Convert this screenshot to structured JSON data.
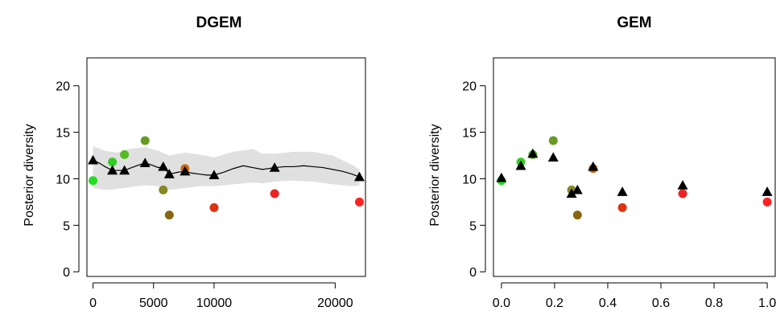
{
  "chart_data": [
    {
      "type": "scatter",
      "title": "DGEM",
      "xlabel": "",
      "ylabel": "Posterior diversity",
      "xlim": [
        -500,
        22500
      ],
      "ylim": [
        -0.5,
        23
      ],
      "xticks": [
        0,
        5000,
        10000,
        20000
      ],
      "yticks": [
        0,
        5,
        10,
        15,
        20
      ],
      "grid": false,
      "legend": "none",
      "points": [
        {
          "x": 0,
          "y": 9.8,
          "color": "#22dd22"
        },
        {
          "x": 1600,
          "y": 11.8,
          "color": "#33cc22"
        },
        {
          "x": 2600,
          "y": 12.6,
          "color": "#55bb22"
        },
        {
          "x": 4300,
          "y": 14.1,
          "color": "#669922"
        },
        {
          "x": 5800,
          "y": 8.8,
          "color": "#888822"
        },
        {
          "x": 6300,
          "y": 6.1,
          "color": "#886611"
        },
        {
          "x": 7600,
          "y": 11.1,
          "color": "#cc6611"
        },
        {
          "x": 10000,
          "y": 6.9,
          "color": "#dd3311"
        },
        {
          "x": 15000,
          "y": 8.4,
          "color": "#ee2222"
        },
        {
          "x": 22000,
          "y": 7.5,
          "color": "#ff2222"
        }
      ],
      "triangles": [
        {
          "x": 0,
          "y": 12.0
        },
        {
          "x": 1600,
          "y": 10.9
        },
        {
          "x": 2600,
          "y": 10.9
        },
        {
          "x": 4300,
          "y": 11.7
        },
        {
          "x": 5800,
          "y": 11.3
        },
        {
          "x": 6300,
          "y": 10.5
        },
        {
          "x": 7600,
          "y": 10.8
        },
        {
          "x": 10000,
          "y": 10.4
        },
        {
          "x": 15000,
          "y": 11.2
        },
        {
          "x": 22000,
          "y": 10.2
        }
      ],
      "line": {
        "x": [
          0,
          500,
          1000,
          1600,
          2000,
          2600,
          3000,
          3600,
          4300,
          4800,
          5400,
          5800,
          6300,
          7000,
          7600,
          8200,
          8800,
          9400,
          10000,
          10800,
          11600,
          12400,
          13200,
          14000,
          15000,
          15800,
          16600,
          17400,
          18200,
          19000,
          19800,
          20600,
          21400,
          22000
        ],
        "y": [
          12.0,
          11.7,
          11.3,
          10.9,
          10.9,
          10.9,
          11.1,
          11.4,
          11.7,
          11.5,
          11.2,
          11.3,
          10.5,
          10.7,
          10.8,
          10.6,
          10.5,
          10.4,
          10.4,
          10.7,
          11.1,
          11.4,
          11.2,
          11.0,
          11.2,
          11.3,
          11.3,
          11.4,
          11.3,
          11.2,
          11.0,
          10.8,
          10.5,
          10.2
        ]
      },
      "band": {
        "x": [
          0,
          1000,
          2000,
          3000,
          4300,
          5400,
          6300,
          7600,
          8800,
          10000,
          11600,
          13200,
          14000,
          15000,
          16600,
          18200,
          19800,
          21400,
          22000
        ],
        "lower": [
          9.0,
          8.8,
          8.9,
          9.1,
          9.3,
          9.2,
          8.8,
          9.0,
          9.2,
          9.2,
          9.4,
          9.6,
          9.5,
          9.7,
          9.8,
          9.7,
          9.4,
          9.2,
          9.3
        ],
        "upper": [
          13.5,
          13.0,
          12.8,
          13.2,
          13.4,
          13.0,
          12.5,
          12.8,
          12.6,
          12.3,
          12.9,
          13.2,
          12.7,
          12.7,
          12.9,
          12.9,
          12.5,
          11.5,
          11.0
        ]
      }
    },
    {
      "type": "scatter",
      "title": "GEM",
      "xlabel": "",
      "ylabel": "Posterior diversity",
      "xlim": [
        -0.03,
        1.03
      ],
      "ylim": [
        -0.5,
        23
      ],
      "xticks": [
        0.0,
        0.2,
        0.4,
        0.6,
        0.8,
        1.0
      ],
      "xtick_labels": [
        "0.0",
        "0.2",
        "0.4",
        "0.6",
        "0.8",
        "1.0"
      ],
      "yticks": [
        0,
        5,
        10,
        15,
        20
      ],
      "grid": false,
      "legend": "none",
      "points": [
        {
          "x": 0.0,
          "y": 9.8,
          "color": "#22dd22"
        },
        {
          "x": 0.073,
          "y": 11.8,
          "color": "#33cc22"
        },
        {
          "x": 0.118,
          "y": 12.6,
          "color": "#55bb22"
        },
        {
          "x": 0.195,
          "y": 14.1,
          "color": "#669922"
        },
        {
          "x": 0.264,
          "y": 8.8,
          "color": "#888822"
        },
        {
          "x": 0.286,
          "y": 6.1,
          "color": "#886611"
        },
        {
          "x": 0.345,
          "y": 11.1,
          "color": "#cc6611"
        },
        {
          "x": 0.455,
          "y": 6.9,
          "color": "#dd3311"
        },
        {
          "x": 0.682,
          "y": 8.4,
          "color": "#ee2222"
        },
        {
          "x": 1.0,
          "y": 7.5,
          "color": "#ff2222"
        }
      ],
      "triangles": [
        {
          "x": 0.0,
          "y": 10.1
        },
        {
          "x": 0.073,
          "y": 11.4
        },
        {
          "x": 0.118,
          "y": 12.7
        },
        {
          "x": 0.195,
          "y": 12.3
        },
        {
          "x": 0.264,
          "y": 8.4
        },
        {
          "x": 0.286,
          "y": 8.8
        },
        {
          "x": 0.345,
          "y": 11.3
        },
        {
          "x": 0.455,
          "y": 8.6
        },
        {
          "x": 0.682,
          "y": 9.3
        },
        {
          "x": 1.0,
          "y": 8.6
        }
      ]
    }
  ]
}
